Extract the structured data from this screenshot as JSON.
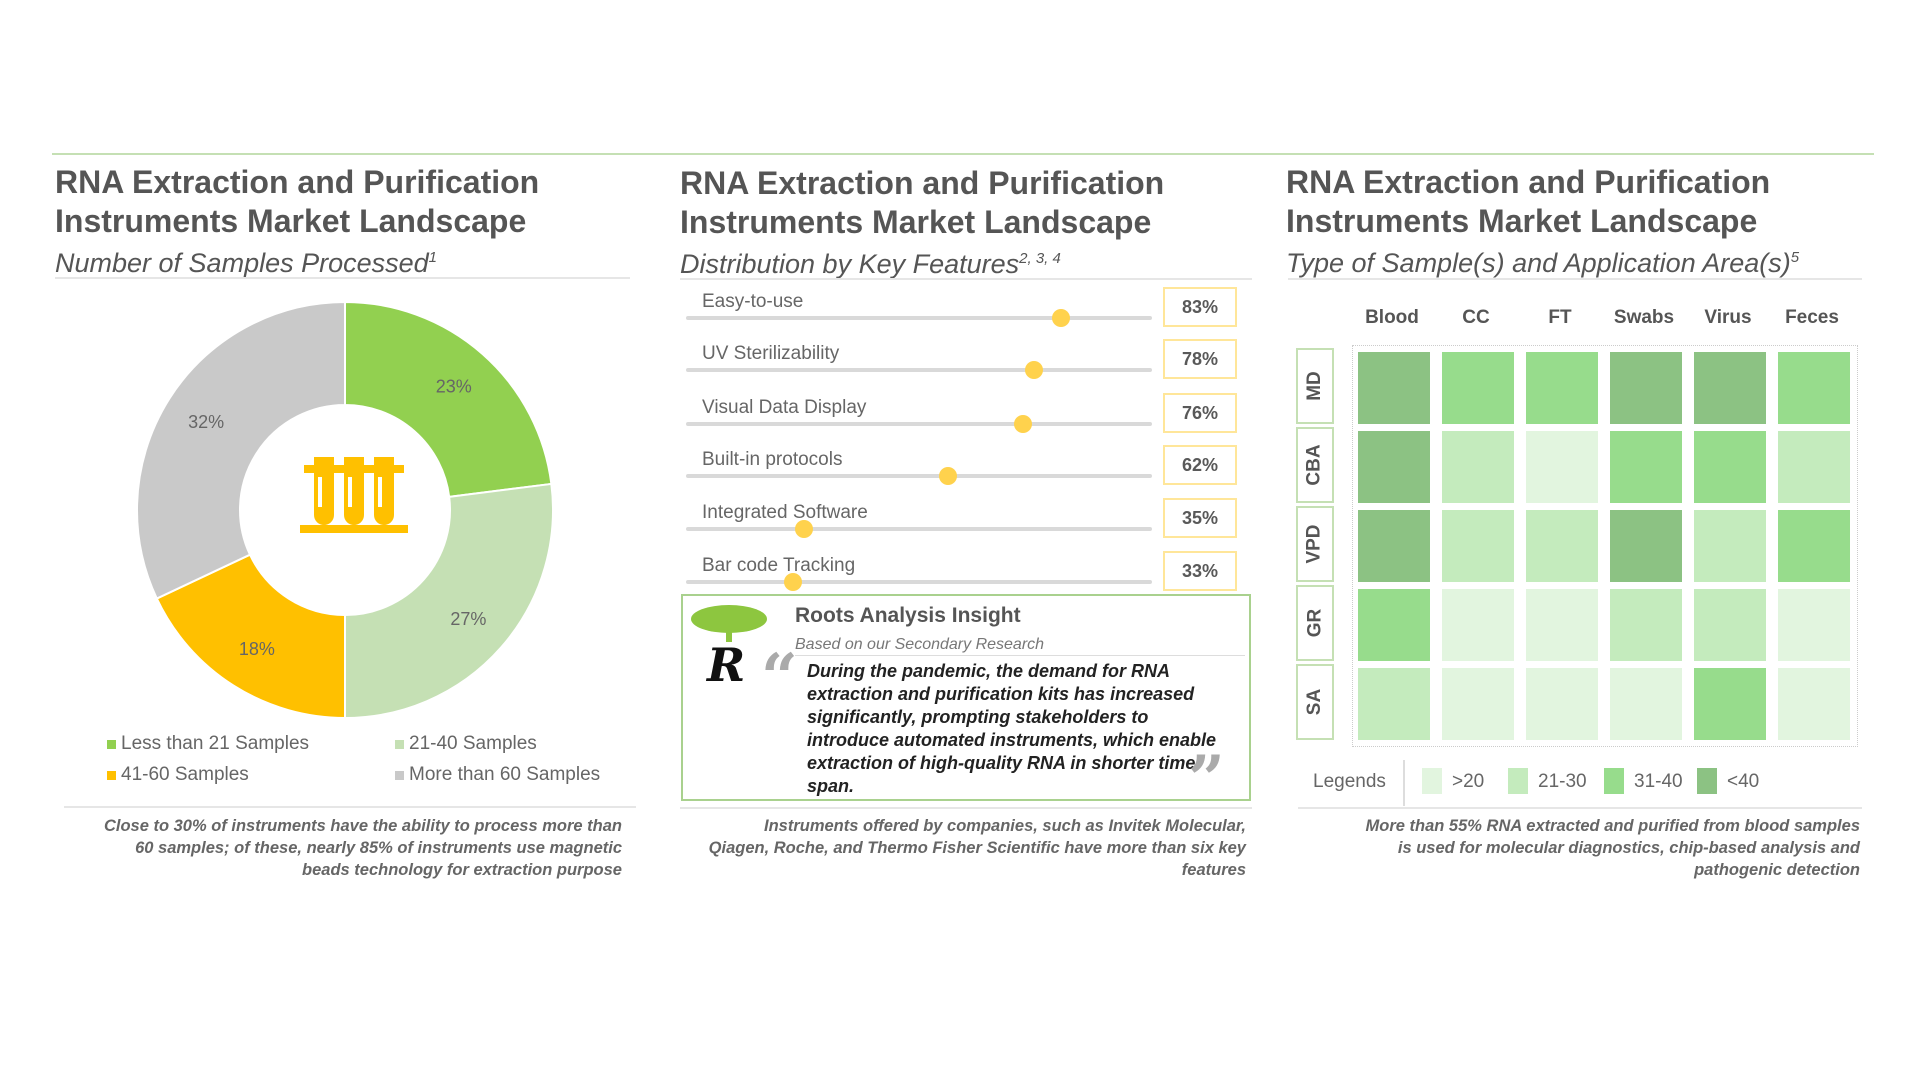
{
  "panels": [
    {
      "title_line1": "RNA Extraction and Purification",
      "title_line2": "Instruments Market Landscape",
      "subtitle": "Number of Samples Processed",
      "subtitle_sup": "1"
    },
    {
      "title_line1": "RNA Extraction and Purification",
      "title_line2": "Instruments Market Landscape",
      "subtitle": "Distribution by Key Features",
      "subtitle_sup": "2, 3, 4"
    },
    {
      "title_line1": "RNA Extraction and Purification",
      "title_line2": "Instruments Market Landscape",
      "subtitle": "Type of Sample(s) and Application Area(s)",
      "subtitle_sup": "5"
    }
  ],
  "donut": {
    "icon": "test-tubes-icon",
    "slices": [
      {
        "label": "Less than 21 Samples",
        "value": 23,
        "text": "23%",
        "color": "#92d050"
      },
      {
        "label": "21-40 Samples",
        "value": 27,
        "text": "27%",
        "color": "#c5e0b4"
      },
      {
        "label": "41-60 Samples",
        "value": 18,
        "text": "18%",
        "color": "#ffc000"
      },
      {
        "label": "More than 60 Samples",
        "value": 32,
        "text": "32%",
        "color": "#c9c9c9"
      }
    ],
    "footnote": "Close to 30% of instruments have the ability to process more than 60 samples; of these, nearly 85% of instruments use magnetic beads technology for extraction purpose"
  },
  "features": {
    "items": [
      {
        "label": "Easy-to-use",
        "value": 83,
        "text": "83%"
      },
      {
        "label": "UV Sterilizability",
        "value": 78,
        "text": "78%"
      },
      {
        "label": "Visual Data Display",
        "value": 76,
        "text": "76%"
      },
      {
        "label": "Built-in protocols",
        "value": 62,
        "text": "62%"
      },
      {
        "label": "Integrated Software",
        "value": 35,
        "text": "35%"
      },
      {
        "label": "Bar code Tracking",
        "value": 33,
        "text": "33%"
      }
    ],
    "insight": {
      "title": "Roots Analysis Insight",
      "subtitle": "Based on our Secondary Research",
      "quote": "During the pandemic, the demand for RNA extraction and purification kits has increased significantly, prompting stakeholders to introduce automated instruments, which enable extraction of high-quality RNA in shorter time span.",
      "open_mark": "“",
      "close_mark": "”",
      "logo_letter": "R"
    },
    "footnote": "Instruments offered by companies, such as Invitek Molecular, Qiagen, Roche, and Thermo Fisher Scientific have more than six key features"
  },
  "heatmap": {
    "columns": [
      "Blood",
      "CC",
      "FT",
      "Swabs",
      "Virus",
      "Feces"
    ],
    "rows": [
      "MD",
      "CBA",
      "VPD",
      "GR",
      "SA"
    ],
    "levels": [
      [
        3,
        2,
        2,
        3,
        3,
        2
      ],
      [
        3,
        1,
        0,
        2,
        2,
        1
      ],
      [
        3,
        1,
        1,
        3,
        1,
        2
      ],
      [
        2,
        0,
        0,
        1,
        1,
        0
      ],
      [
        1,
        0,
        0,
        0,
        2,
        0
      ]
    ],
    "legend_title": "Legends",
    "legend": [
      {
        "label": ">20",
        "color": "#e2f5df"
      },
      {
        "label": "21-30",
        "color": "#c4ebbd"
      },
      {
        "label": "31-40",
        "color": "#97dc8c"
      },
      {
        "label": "<40",
        "color": "#8cc283"
      }
    ],
    "footnote": "More than 55% RNA extracted and purified from blood samples is used for molecular diagnostics, chip-based analysis and pathogenic detection"
  }
}
